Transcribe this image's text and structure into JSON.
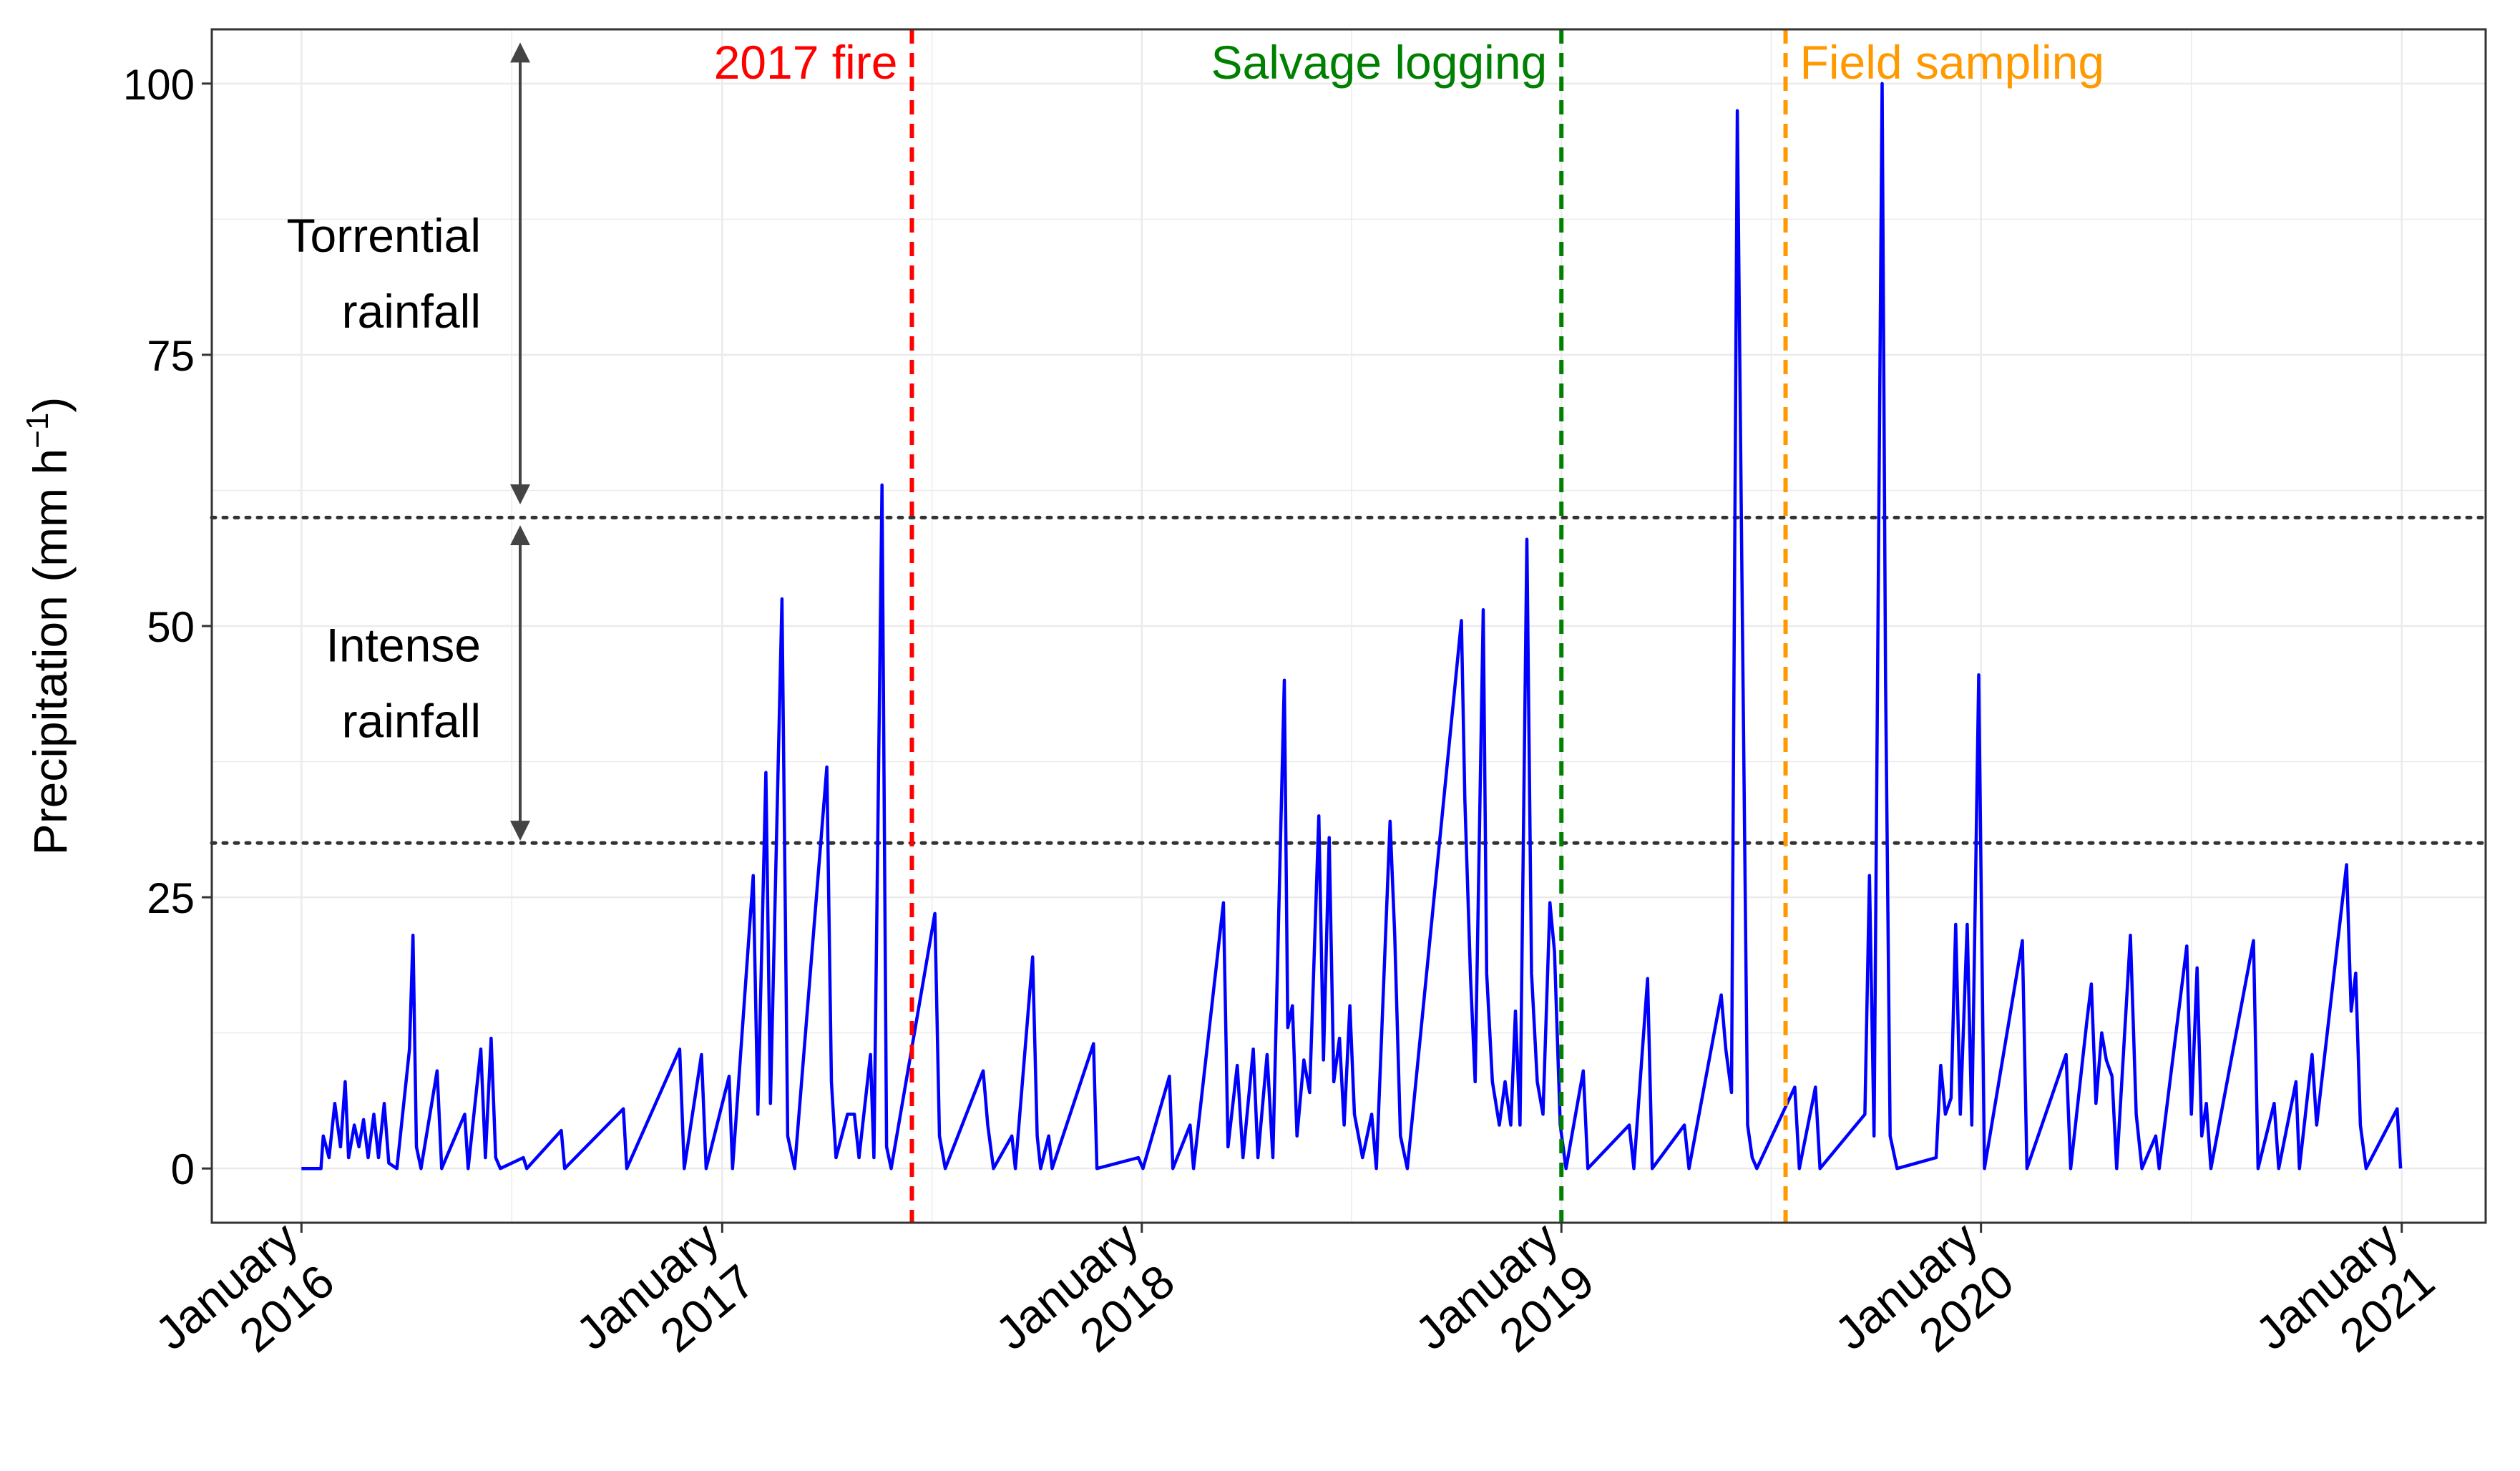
{
  "chart_data": {
    "type": "line",
    "title": "",
    "xlabel": "",
    "ylabel": "Precipitation (mm h",
    "ylabel_sup": "−1",
    "ylabel_close": ")",
    "ylim": [
      -5,
      105
    ],
    "xlim": [
      "2015-10-15",
      "2021-03-15"
    ],
    "grid": true,
    "legend": "none",
    "y_ticks": [
      0,
      25,
      50,
      75,
      100
    ],
    "y_tick_labels": [
      "0",
      "25",
      "50",
      "75",
      "100"
    ],
    "x_ticks": [
      {
        "date": "2016-01-01",
        "month": "January",
        "year": "2016"
      },
      {
        "date": "2017-01-01",
        "month": "January",
        "year": "2017"
      },
      {
        "date": "2018-01-01",
        "month": "January",
        "year": "2018"
      },
      {
        "date": "2019-01-01",
        "month": "January",
        "year": "2019"
      },
      {
        "date": "2020-01-01",
        "month": "January",
        "year": "2020"
      },
      {
        "date": "2021-01-01",
        "month": "January",
        "year": "2021"
      }
    ],
    "series": [
      {
        "color": "#0000ff",
        "points": [
          [
            "2016-01-01",
            0
          ],
          [
            "2016-01-18",
            0
          ],
          [
            "2016-01-20",
            3
          ],
          [
            "2016-01-25",
            1
          ],
          [
            "2016-01-30",
            6
          ],
          [
            "2016-02-04",
            2
          ],
          [
            "2016-02-08",
            8
          ],
          [
            "2016-02-11",
            1
          ],
          [
            "2016-02-16",
            4
          ],
          [
            "2016-02-20",
            2
          ],
          [
            "2016-02-24",
            4.5
          ],
          [
            "2016-02-28",
            1
          ],
          [
            "2016-03-04",
            5
          ],
          [
            "2016-03-08",
            1
          ],
          [
            "2016-03-13",
            6
          ],
          [
            "2016-03-17",
            0.5
          ],
          [
            "2016-03-24",
            0
          ],
          [
            "2016-04-04",
            11
          ],
          [
            "2016-04-07",
            21.5
          ],
          [
            "2016-04-10",
            2
          ],
          [
            "2016-04-14",
            0
          ],
          [
            "2016-04-28",
            9
          ],
          [
            "2016-05-02",
            0
          ],
          [
            "2016-05-22",
            5
          ],
          [
            "2016-05-25",
            0
          ],
          [
            "2016-06-05",
            11
          ],
          [
            "2016-06-09",
            1
          ],
          [
            "2016-06-14",
            12
          ],
          [
            "2016-06-18",
            1
          ],
          [
            "2016-06-22",
            0
          ],
          [
            "2016-07-12",
            1
          ],
          [
            "2016-07-15",
            0
          ],
          [
            "2016-08-14",
            3.5
          ],
          [
            "2016-08-17",
            0
          ],
          [
            "2016-10-07",
            5.5
          ],
          [
            "2016-10-10",
            0
          ],
          [
            "2016-11-25",
            11
          ],
          [
            "2016-11-29",
            0
          ],
          [
            "2016-12-14",
            10.5
          ],
          [
            "2016-12-18",
            0
          ],
          [
            "2017-01-07",
            8.5
          ],
          [
            "2017-01-10",
            0
          ],
          [
            "2017-01-28",
            27
          ],
          [
            "2017-02-01",
            5
          ],
          [
            "2017-02-08",
            36.5
          ],
          [
            "2017-02-12",
            6
          ],
          [
            "2017-02-22",
            52.5
          ],
          [
            "2017-02-27",
            3
          ],
          [
            "2017-03-05",
            0
          ],
          [
            "2017-04-02",
            37
          ],
          [
            "2017-04-06",
            8
          ],
          [
            "2017-04-10",
            1
          ],
          [
            "2017-04-20",
            5
          ],
          [
            "2017-04-26",
            5
          ],
          [
            "2017-04-30",
            1
          ],
          [
            "2017-05-10",
            10.5
          ],
          [
            "2017-05-13",
            1
          ],
          [
            "2017-05-20",
            63
          ],
          [
            "2017-05-24",
            2
          ],
          [
            "2017-05-28",
            0
          ],
          [
            "2017-07-05",
            23.5
          ],
          [
            "2017-07-09",
            3
          ],
          [
            "2017-07-14",
            0
          ],
          [
            "2017-08-16",
            9
          ],
          [
            "2017-08-20",
            4
          ],
          [
            "2017-08-25",
            0
          ],
          [
            "2017-09-10",
            3
          ],
          [
            "2017-09-13",
            0
          ],
          [
            "2017-09-28",
            19.5
          ],
          [
            "2017-10-02",
            3
          ],
          [
            "2017-10-05",
            0
          ],
          [
            "2017-10-12",
            3
          ],
          [
            "2017-10-15",
            0
          ],
          [
            "2017-11-20",
            11.5
          ],
          [
            "2017-11-23",
            0
          ],
          [
            "2017-12-29",
            1
          ],
          [
            "2018-01-02",
            0
          ],
          [
            "2018-01-25",
            8.5
          ],
          [
            "2018-01-28",
            0
          ],
          [
            "2018-02-12",
            4
          ],
          [
            "2018-02-15",
            0
          ],
          [
            "2018-03-13",
            24.5
          ],
          [
            "2018-03-17",
            2
          ],
          [
            "2018-03-25",
            9.5
          ],
          [
            "2018-03-30",
            1
          ],
          [
            "2018-04-08",
            11
          ],
          [
            "2018-04-12",
            1
          ],
          [
            "2018-04-20",
            10.5
          ],
          [
            "2018-04-25",
            1
          ],
          [
            "2018-05-05",
            45
          ],
          [
            "2018-05-08",
            13
          ],
          [
            "2018-05-12",
            15
          ],
          [
            "2018-05-16",
            3
          ],
          [
            "2018-05-22",
            10
          ],
          [
            "2018-05-27",
            7
          ],
          [
            "2018-06-04",
            32.5
          ],
          [
            "2018-06-08",
            10
          ],
          [
            "2018-06-13",
            30.5
          ],
          [
            "2018-06-17",
            8
          ],
          [
            "2018-06-22",
            12
          ],
          [
            "2018-06-26",
            4
          ],
          [
            "2018-07-01",
            15
          ],
          [
            "2018-07-05",
            5
          ],
          [
            "2018-07-12",
            1
          ],
          [
            "2018-07-20",
            5
          ],
          [
            "2018-07-24",
            0
          ],
          [
            "2018-08-05",
            32
          ],
          [
            "2018-08-09",
            21.5
          ],
          [
            "2018-08-14",
            3
          ],
          [
            "2018-08-20",
            0
          ],
          [
            "2018-10-06",
            50.5
          ],
          [
            "2018-10-09",
            34
          ],
          [
            "2018-10-14",
            17.5
          ],
          [
            "2018-10-18",
            8
          ],
          [
            "2018-10-25",
            51.5
          ],
          [
            "2018-10-28",
            18
          ],
          [
            "2018-11-02",
            8
          ],
          [
            "2018-11-08",
            4
          ],
          [
            "2018-11-13",
            8
          ],
          [
            "2018-11-18",
            4
          ],
          [
            "2018-11-22",
            14.5
          ],
          [
            "2018-11-26",
            4
          ],
          [
            "2018-12-02",
            58
          ],
          [
            "2018-12-06",
            18
          ],
          [
            "2018-12-11",
            8
          ],
          [
            "2018-12-16",
            5
          ],
          [
            "2018-12-22",
            24.5
          ],
          [
            "2018-12-26",
            20
          ],
          [
            "2018-12-31",
            4
          ],
          [
            "2019-01-05",
            0
          ],
          [
            "2019-01-20",
            9
          ],
          [
            "2019-01-24",
            0
          ],
          [
            "2019-03-01",
            4
          ],
          [
            "2019-03-05",
            0
          ],
          [
            "2019-03-17",
            17.5
          ],
          [
            "2019-03-21",
            0
          ],
          [
            "2019-04-18",
            4
          ],
          [
            "2019-04-22",
            0
          ],
          [
            "2019-05-20",
            16
          ],
          [
            "2019-05-24",
            11
          ],
          [
            "2019-05-29",
            7
          ],
          [
            "2019-06-03",
            97.5
          ],
          [
            "2019-06-07",
            55
          ],
          [
            "2019-06-12",
            4
          ],
          [
            "2019-06-16",
            1
          ],
          [
            "2019-06-20",
            0
          ],
          [
            "2019-07-23",
            7.5
          ],
          [
            "2019-07-27",
            0
          ],
          [
            "2019-08-10",
            7.5
          ],
          [
            "2019-08-14",
            0
          ],
          [
            "2019-09-22",
            5
          ],
          [
            "2019-09-26",
            27
          ],
          [
            "2019-09-30",
            3
          ],
          [
            "2019-10-07",
            100
          ],
          [
            "2019-10-10",
            45
          ],
          [
            "2019-10-14",
            3
          ],
          [
            "2019-10-20",
            0
          ],
          [
            "2019-11-23",
            1
          ],
          [
            "2019-11-27",
            9.5
          ],
          [
            "2019-12-01",
            5
          ],
          [
            "2019-12-06",
            6.5
          ],
          [
            "2019-12-10",
            22.5
          ],
          [
            "2019-12-14",
            5
          ],
          [
            "2019-12-20",
            22.5
          ],
          [
            "2019-12-24",
            4
          ],
          [
            "2019-12-30",
            45.5
          ],
          [
            "2020-01-04",
            0
          ],
          [
            "2020-02-06",
            21
          ],
          [
            "2020-02-10",
            0
          ],
          [
            "2020-03-15",
            10.5
          ],
          [
            "2020-03-19",
            0
          ],
          [
            "2020-04-02",
            13.5
          ],
          [
            "2020-04-06",
            17
          ],
          [
            "2020-04-10",
            6
          ],
          [
            "2020-04-15",
            12.5
          ],
          [
            "2020-04-19",
            10
          ],
          [
            "2020-04-24",
            8.5
          ],
          [
            "2020-04-28",
            0
          ],
          [
            "2020-05-10",
            21.5
          ],
          [
            "2020-05-15",
            5
          ],
          [
            "2020-05-20",
            0
          ],
          [
            "2020-06-01",
            3
          ],
          [
            "2020-06-04",
            0
          ],
          [
            "2020-06-28",
            20.5
          ],
          [
            "2020-07-02",
            5
          ],
          [
            "2020-07-07",
            18.5
          ],
          [
            "2020-07-11",
            3
          ],
          [
            "2020-07-15",
            6
          ],
          [
            "2020-07-19",
            0
          ],
          [
            "2020-08-25",
            21
          ],
          [
            "2020-08-29",
            0
          ],
          [
            "2020-09-12",
            6
          ],
          [
            "2020-09-16",
            0
          ],
          [
            "2020-10-01",
            8
          ],
          [
            "2020-10-04",
            0
          ],
          [
            "2020-10-15",
            10.5
          ],
          [
            "2020-10-19",
            4
          ],
          [
            "2020-11-14",
            28
          ],
          [
            "2020-11-18",
            14.5
          ],
          [
            "2020-11-22",
            18
          ],
          [
            "2020-11-26",
            4
          ],
          [
            "2020-12-01",
            0
          ],
          [
            "2020-12-28",
            5.5
          ],
          [
            "2020-12-31",
            0
          ]
        ]
      }
    ],
    "thresholds": [
      {
        "y": 60,
        "style": "dotted",
        "color": "#333333"
      },
      {
        "y": 30,
        "style": "dotted",
        "color": "#333333"
      }
    ],
    "events": [
      {
        "date": "2017-06-15",
        "label": "2017 fire",
        "color": "#ff0000",
        "align": "end"
      },
      {
        "date": "2019-01-01",
        "label": "Salvage logging",
        "color": "#008000",
        "align": "end"
      },
      {
        "date": "2019-07-15",
        "label": "Field sampling",
        "color": "#ff9900",
        "align": "start"
      }
    ],
    "annotations": [
      {
        "lines": [
          "Torrential",
          "rainfall"
        ],
        "arrow_from": 103,
        "arrow_to": 62
      },
      {
        "lines": [
          "Intense",
          "rainfall"
        ],
        "arrow_from": 58.5,
        "arrow_to": 31
      }
    ]
  }
}
